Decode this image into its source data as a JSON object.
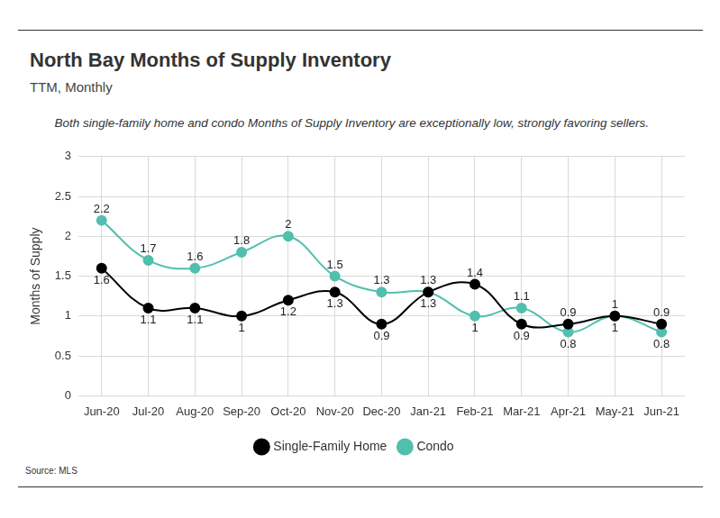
{
  "chart_data": {
    "type": "line",
    "title": "North Bay Months of Supply Inventory",
    "subtitle": "TTM, Monthly",
    "annotation": "Both single-family home and condo Months of Supply Inventory are exceptionally low, strongly favoring sellers.",
    "source": "Source: MLS",
    "y_label": "Months of Supply",
    "categories": [
      "Jun-20",
      "Jul-20",
      "Aug-20",
      "Sep-20",
      "Oct-20",
      "Nov-20",
      "Dec-20",
      "Jan-21",
      "Feb-21",
      "Mar-21",
      "Apr-21",
      "May-21",
      "Jun-21"
    ],
    "series": [
      {
        "name": "Single-Family Home",
        "color": "#000000",
        "marker": "circle",
        "values": [
          1.6,
          1.1,
          1.1,
          1,
          1.2,
          1.3,
          0.9,
          1.3,
          1.4,
          0.9,
          0.9,
          1,
          0.9
        ]
      },
      {
        "name": "Condo",
        "color": "#52bfae",
        "marker": "circle",
        "values": [
          2.2,
          1.7,
          1.6,
          1.8,
          2,
          1.5,
          1.3,
          1.3,
          1,
          1.1,
          0.8,
          1,
          0.8
        ]
      }
    ],
    "ylim": [
      0,
      3
    ],
    "yticks": [
      0,
      0.5,
      1,
      1.5,
      2,
      2.5,
      3
    ],
    "grid": true,
    "legend": "bottom",
    "data_labels": true
  }
}
